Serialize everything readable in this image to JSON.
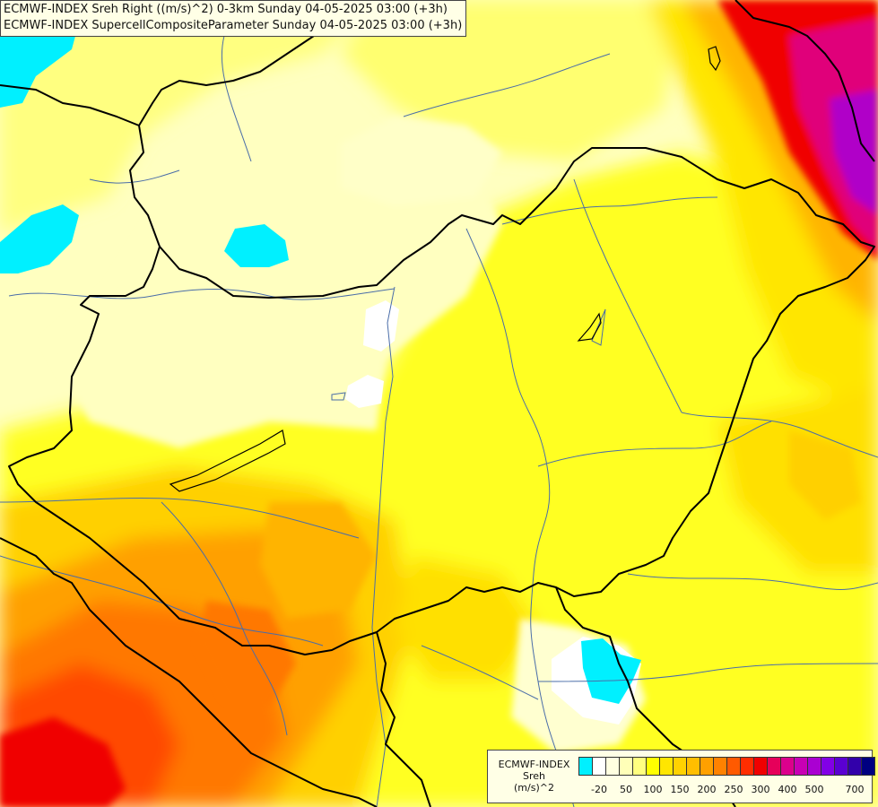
{
  "header": {
    "line1": "ECMWF-INDEX Sreh Right ((m/s)^2) 0-3km Sunday 04-05-2025 03:00 (+3h)",
    "line2": "ECMWF-INDEX SupercellCompositeParameter Sunday 04-05-2025 03:00 (+3h)"
  },
  "legend": {
    "title_lines": [
      "ECMWF-INDEX",
      "Sreh",
      "(m/s)^2"
    ],
    "colors": [
      "#00f0ff",
      "#ffffff",
      "#ffffe0",
      "#ffffb8",
      "#ffff80",
      "#ffff00",
      "#ffe600",
      "#ffd200",
      "#ffbe00",
      "#ffa000",
      "#ff8200",
      "#ff5a00",
      "#ff2d00",
      "#f00000",
      "#e6005a",
      "#dc008c",
      "#c800b4",
      "#aa00d2",
      "#8200e6",
      "#5a00d2",
      "#3200aa",
      "#000080"
    ],
    "tick_labels": [
      "-20",
      "50",
      "100",
      "150",
      "200",
      "250",
      "300",
      "400",
      "500",
      "700"
    ]
  },
  "map": {
    "fill_colors": {
      "pale": "#ffffc0",
      "light": "#ffff90",
      "yellow": "#ffff20",
      "gold": "#ffe600",
      "amber": "#ffc800",
      "orange": "#ffa000",
      "deep_orange": "#ff7800",
      "red_orange": "#ff4a00",
      "red": "#f00000",
      "magenta": "#e0007a",
      "violet": "#b000c8",
      "cyan": "#00f0ff",
      "white": "#ffffff"
    },
    "border_color": "#000000",
    "river_color": "#4a6da8"
  }
}
